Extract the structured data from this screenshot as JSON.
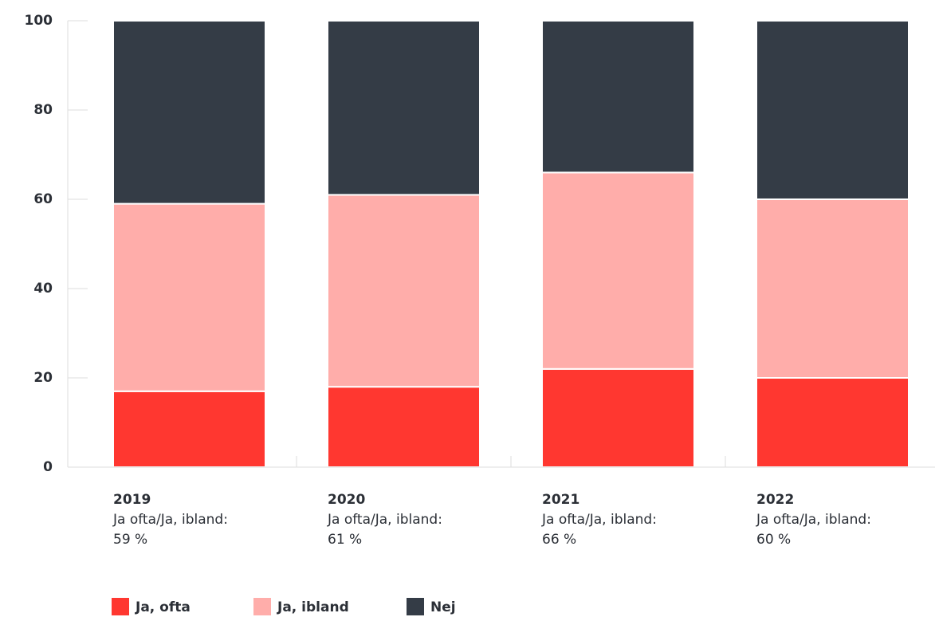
{
  "chart_data": {
    "type": "stacked_bar",
    "categories": [
      "2019",
      "2020",
      "2021",
      "2022"
    ],
    "category_notes": [
      [
        "Ja ofta/Ja, ibland:",
        "59 %"
      ],
      [
        "Ja ofta/Ja, ibland:",
        "61 %"
      ],
      [
        "Ja ofta/Ja, ibland:",
        "66 %"
      ],
      [
        "Ja ofta/Ja, ibland:",
        "60 %"
      ]
    ],
    "series": [
      {
        "name": "Ja, ofta",
        "color": "#ff3730",
        "values": [
          17,
          18,
          22,
          20
        ]
      },
      {
        "name": "Ja, ibland",
        "color": "#ffadaa",
        "values": [
          42,
          43,
          44,
          40
        ]
      },
      {
        "name": "Nej",
        "color": "#343c46",
        "values": [
          41,
          39,
          34,
          40
        ]
      }
    ],
    "ylim": [
      0,
      100
    ],
    "yticks": [
      0,
      20,
      40,
      60,
      80,
      100
    ],
    "legend": "bottom-left"
  }
}
